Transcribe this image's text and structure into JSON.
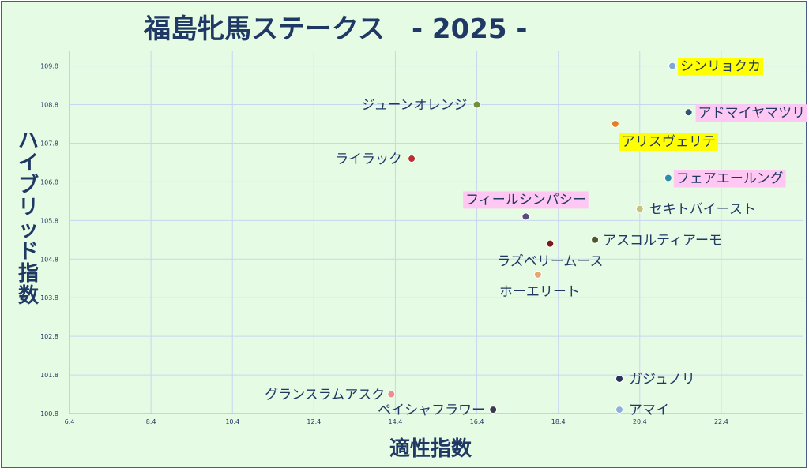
{
  "chart_data": {
    "type": "scatter",
    "title": "福島牝馬ステークス　- 2025 -",
    "xlabel": "適性指数",
    "ylabel": "ハイブリッド指数",
    "xlim": [
      6.4,
      24.4
    ],
    "ylim": [
      100.8,
      110.2
    ],
    "x_ticks": [
      "6.4",
      "8.4",
      "10.4",
      "12.4",
      "14.4",
      "16.4",
      "18.4",
      "20.4",
      "22.4"
    ],
    "y_ticks": [
      "100.8",
      "101.8",
      "102.8",
      "103.8",
      "104.8",
      "105.8",
      "106.8",
      "107.8",
      "108.8",
      "109.8"
    ],
    "grid": true,
    "points": [
      {
        "name": "シンリョクカ",
        "x": 21.2,
        "y": 109.8,
        "color": "#7fa7d6",
        "highlight": "#ffff00"
      },
      {
        "name": "ジューンオレンジ",
        "x": 16.4,
        "y": 108.8,
        "color": "#70913a",
        "highlight": ""
      },
      {
        "name": "アドマイヤマツリ",
        "x": 21.6,
        "y": 108.6,
        "color": "#2d5573",
        "highlight": "#ffc8f2"
      },
      {
        "name": "アリスヴェリテ",
        "x": 19.8,
        "y": 108.3,
        "color": "#e0812a",
        "highlight": "#ffff00"
      },
      {
        "name": "ライラック",
        "x": 14.8,
        "y": 107.4,
        "color": "#b8312d",
        "highlight": ""
      },
      {
        "name": "フェアエールング",
        "x": 21.1,
        "y": 106.9,
        "color": "#2b8faa",
        "highlight": "#ffc8f2"
      },
      {
        "name": "セキトバイースト",
        "x": 20.4,
        "y": 106.1,
        "color": "#c8c17a",
        "highlight": ""
      },
      {
        "name": "フィールシンパシー",
        "x": 17.6,
        "y": 105.9,
        "color": "#5b4a7d",
        "highlight": "#ffc8f2"
      },
      {
        "name": "アスコルティアーモ",
        "x": 19.3,
        "y": 105.3,
        "color": "#4b5a2a",
        "highlight": ""
      },
      {
        "name": "ラズベリームース",
        "x": 18.2,
        "y": 105.2,
        "color": "#7a1a1a",
        "highlight": ""
      },
      {
        "name": "ホーエリート",
        "x": 17.9,
        "y": 104.4,
        "color": "#e8a76a",
        "highlight": ""
      },
      {
        "name": "ガジュノリ",
        "x": 19.9,
        "y": 101.7,
        "color": "#26345a",
        "highlight": ""
      },
      {
        "name": "グランスラムアスク",
        "x": 14.3,
        "y": 101.3,
        "color": "#e8908a",
        "highlight": ""
      },
      {
        "name": "アマイ",
        "x": 19.9,
        "y": 100.9,
        "color": "#8fb0d8",
        "highlight": ""
      },
      {
        "name": "ペイシャフラワー",
        "x": 16.8,
        "y": 100.9,
        "color": "#3a3a4e",
        "highlight": ""
      }
    ]
  }
}
